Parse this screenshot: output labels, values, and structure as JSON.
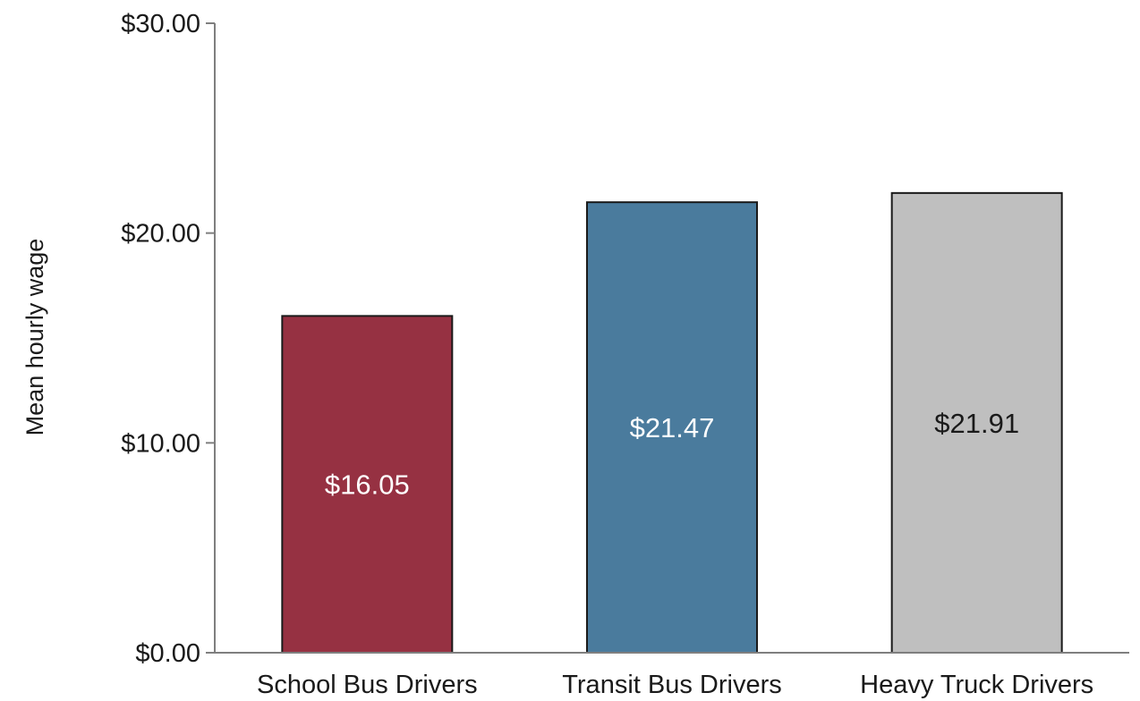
{
  "chart_data": {
    "type": "bar",
    "categories": [
      "School Bus Drivers",
      "Transit Bus Drivers",
      "Heavy Truck Drivers"
    ],
    "values": [
      16.05,
      21.47,
      21.91
    ],
    "data_labels": [
      "$16.05",
      "$21.47",
      "$21.91"
    ],
    "title": "",
    "xlabel": "",
    "ylabel": "Mean hourly wage",
    "ylim": [
      0,
      30
    ],
    "yticks": [
      0,
      10,
      20,
      30
    ],
    "ytick_labels": [
      "$0.00",
      "$10.00",
      "$20.00",
      "$30.00"
    ],
    "grid": false,
    "legend": "none",
    "bar_colors": [
      "#963142",
      "#4a7b9d",
      "#bfbfbf"
    ],
    "label_colors": [
      "#ffffff",
      "#ffffff",
      "#1a1a1a"
    ]
  }
}
